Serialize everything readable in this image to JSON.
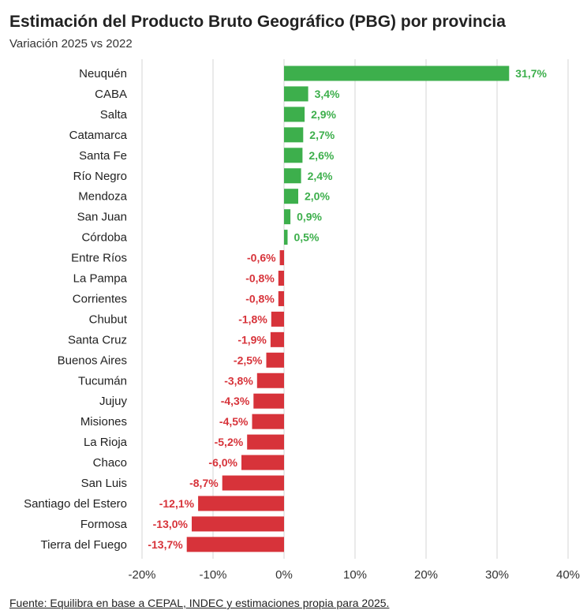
{
  "header": {
    "title": "Estimación del Producto Bruto Geográfico (PBG) por provincia",
    "subtitle": "Variación 2025 vs 2022"
  },
  "footer": {
    "source": "Fuente: Equilibra en base a CEPAL, INDEC y estimaciones propia para 2025."
  },
  "colors": {
    "positive": "#3daf4c",
    "negative": "#d7333a",
    "grid": "#d6d6d6"
  },
  "chart_data": {
    "type": "bar",
    "orientation": "horizontal",
    "title": "Estimación del Producto Bruto Geográfico (PBG) por provincia",
    "subtitle": "Variación 2025 vs 2022",
    "categories": [
      "Neuquén",
      "CABA",
      "Salta",
      "Catamarca",
      "Santa Fe",
      "Río Negro",
      "Mendoza",
      "San Juan",
      "Córdoba",
      "Entre Ríos",
      "La Pampa",
      "Corrientes",
      "Chubut",
      "Santa Cruz",
      "Buenos Aires",
      "Tucumán",
      "Jujuy",
      "Misiones",
      "La Rioja",
      "Chaco",
      "San Luis",
      "Santiago del Estero",
      "Formosa",
      "Tierra del Fuego"
    ],
    "values": [
      31.7,
      3.4,
      2.9,
      2.7,
      2.6,
      2.4,
      2.0,
      0.9,
      0.5,
      -0.6,
      -0.8,
      -0.8,
      -1.8,
      -1.9,
      -2.5,
      -3.8,
      -4.3,
      -4.5,
      -5.2,
      -6.0,
      -8.7,
      -12.1,
      -13.0,
      -13.7
    ],
    "value_labels": [
      "31,7%",
      "3,4%",
      "2,9%",
      "2,7%",
      "2,6%",
      "2,4%",
      "2,0%",
      "0,9%",
      "0,5%",
      "-0,6%",
      "-0,8%",
      "-0,8%",
      "-1,8%",
      "-1,9%",
      "-2,5%",
      "-3,8%",
      "-4,3%",
      "-4,5%",
      "-5,2%",
      "-6,0%",
      "-8,7%",
      "-12,1%",
      "-13,0%",
      "-13,7%"
    ],
    "xlim": [
      -20,
      40
    ],
    "xticks": [
      -20,
      -10,
      0,
      10,
      20,
      30,
      40
    ],
    "xtick_labels": [
      "-20%",
      "-10%",
      "0%",
      "10%",
      "20%",
      "30%",
      "40%"
    ],
    "grid": "vertical",
    "xlabel": "",
    "ylabel": ""
  }
}
